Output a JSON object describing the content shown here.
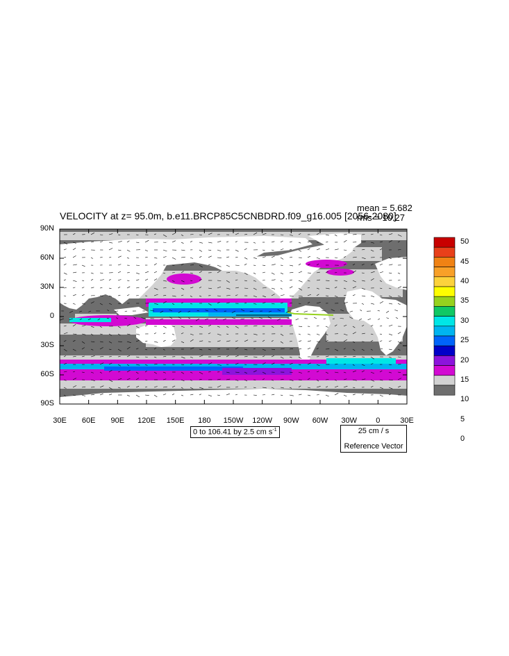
{
  "title": "VELOCITY at z=  95.0m, b.e11.BRCP85C5CNBDRD.f09_g16.005 [2056-2080]",
  "stats": {
    "mean": "mean = 5.682",
    "rms": "rms = 10.27"
  },
  "lat_labels": [
    "90N",
    "60N",
    "30N",
    "0",
    "30S",
    "60S",
    "90S"
  ],
  "lon_labels": [
    "30E",
    "60E",
    "90E",
    "120E",
    "150E",
    "180",
    "150W",
    "120W",
    "90W",
    "60W",
    "30W",
    "0",
    "30E"
  ],
  "info": {
    "text": "0 to 106.41 by 2.5 cm s",
    "exp": "-1"
  },
  "ref_vector": {
    "magnitude": "25 cm / s",
    "label": "Reference Vector"
  },
  "colorbar": {
    "labels": [
      "50",
      "45",
      "40",
      "35",
      "30",
      "25",
      "20",
      "15",
      "10",
      "5",
      "0"
    ],
    "colors": [
      "#c80000",
      "#e8401a",
      "#f08214",
      "#f8a028",
      "#fcd23c",
      "#fefe00",
      "#96d21e",
      "#10c864",
      "#00e6e6",
      "#00b4f0",
      "#0064fa",
      "#0000c8",
      "#8c14dc",
      "#d20ad2",
      "#d2d2d2",
      "#6e6e6e"
    ]
  },
  "colors": {
    "ocean_dark": "#6e6e6e",
    "ocean_light": "#d2d2d2",
    "land": "#ffffff",
    "fast_magenta": "#d20ad2",
    "fast_cyan": "#00e6e6",
    "fast_blue": "#0064fa"
  }
}
